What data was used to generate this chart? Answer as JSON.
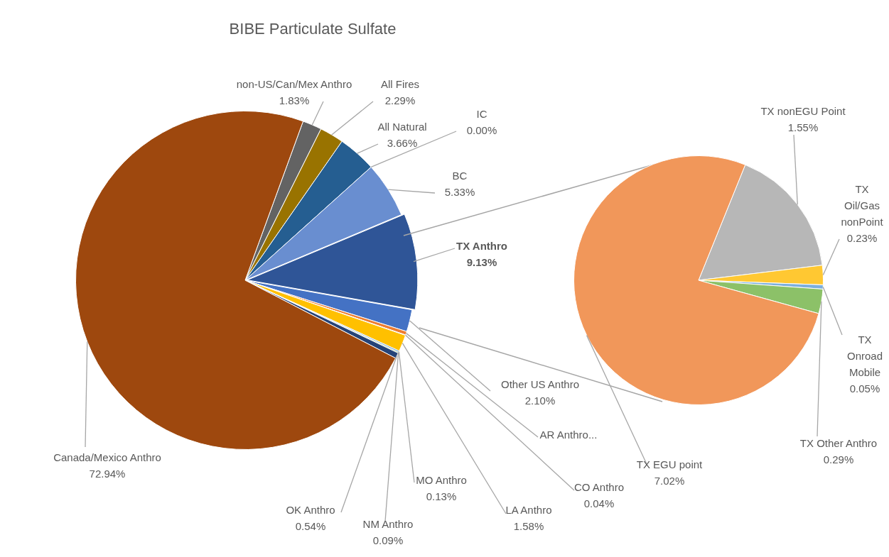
{
  "chart_data": [
    {
      "type": "pie",
      "title": "BIBE Particulate Sulfate",
      "categories": [
        "non-US/Can/Mex Anthro",
        "All Fires",
        "All Natural",
        "IC",
        "BC",
        "TX Anthro",
        "Other US Anthro",
        "AR Anthro...",
        "CO Anthro",
        "LA Anthro",
        "MO Anthro",
        "NM Anthro",
        "OK Anthro",
        "Canada/Mexico Anthro"
      ],
      "values": [
        1.83,
        2.29,
        3.66,
        0.0,
        5.33,
        9.13,
        2.1,
        0.34,
        0.04,
        1.58,
        0.13,
        0.09,
        0.54,
        72.94
      ],
      "value_labels": [
        "1.83%",
        "2.29%",
        "3.66%",
        "0.00%",
        "5.33%",
        "9.13%",
        "2.10%",
        null,
        "0.04%",
        "1.58%",
        "0.13%",
        "0.09%",
        "0.54%",
        "72.94%"
      ],
      "colors": [
        "#636363",
        "#997300",
        "#255e91",
        "#a9d18e",
        "#698ed0",
        "#2f5597",
        "#4472c4",
        "#ed7d31",
        "#a5a5a5",
        "#ffc000",
        "#5b9bd5",
        "#70ad47",
        "#264478",
        "#9e480e"
      ]
    },
    {
      "type": "pie",
      "categories": [
        "TX nonEGU Point",
        "TX Oil/Gas nonPoint",
        "TX Onroad Mobile",
        "TX Other Anthro",
        "TX EGU point"
      ],
      "values": [
        1.55,
        0.23,
        0.05,
        0.29,
        7.02
      ],
      "value_labels": [
        "1.55%",
        "0.23%",
        "0.05%",
        "0.29%",
        "7.02%"
      ],
      "colors": [
        "#b7b7b7",
        "#ffc832",
        "#7cafdd",
        "#8cc168",
        "#f1975a"
      ]
    }
  ]
}
